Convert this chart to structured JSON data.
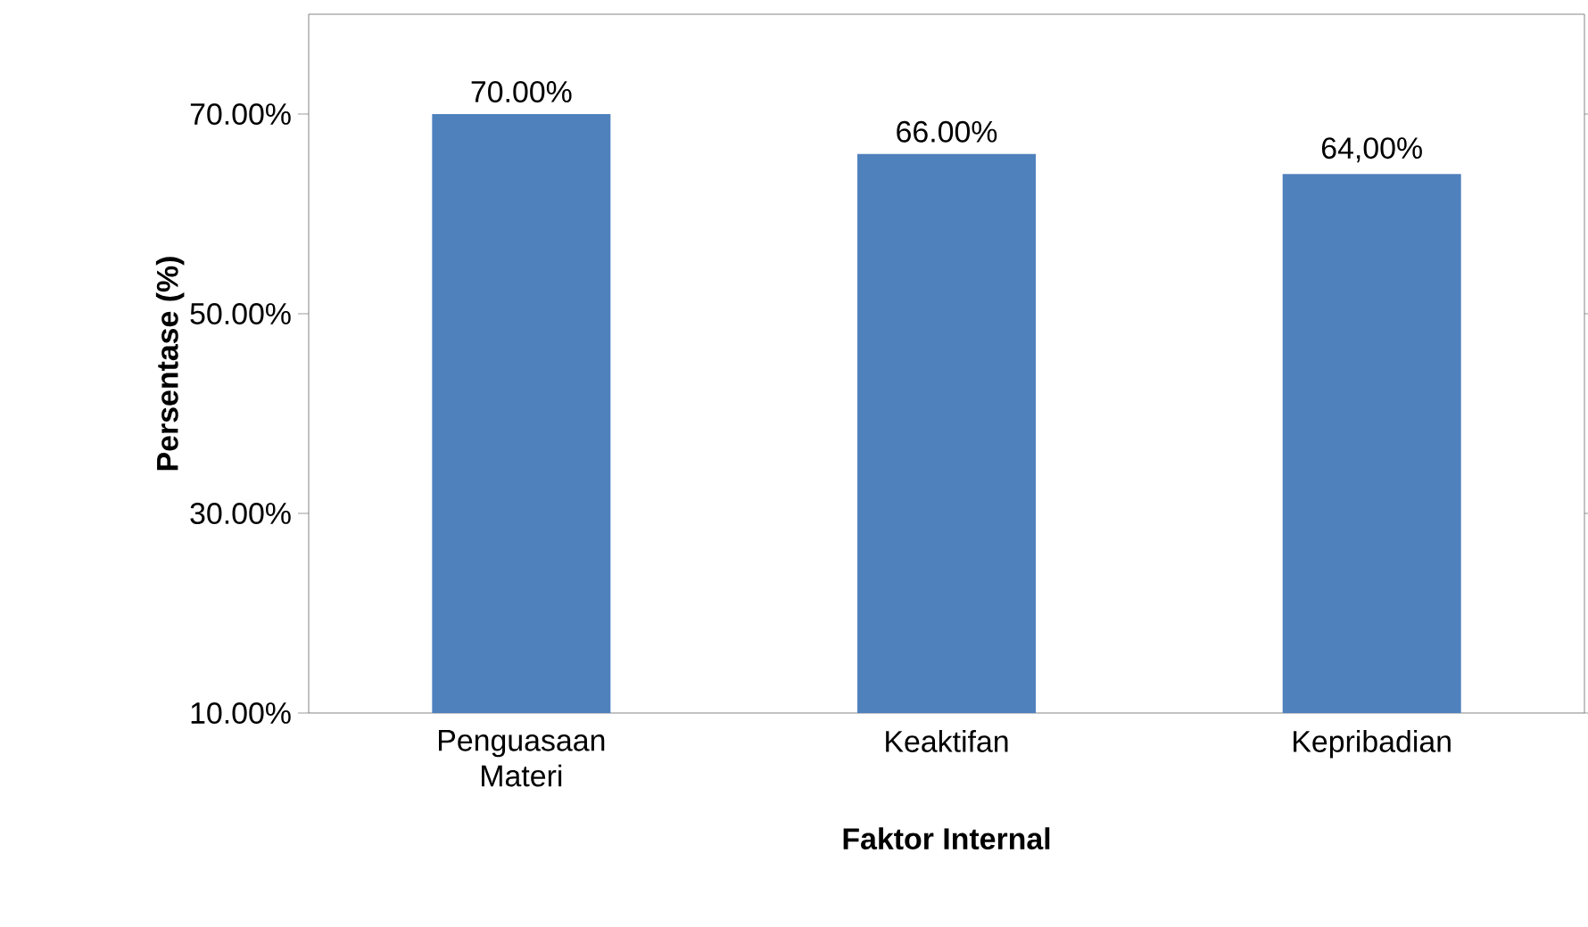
{
  "chart_data": {
    "type": "bar",
    "categories": [
      "Penguasaan Materi",
      "Keaktifan",
      "Kepribadian"
    ],
    "values": [
      70,
      66,
      64
    ],
    "value_labels": [
      "70.00%",
      "66.00%",
      "64,00%"
    ],
    "color": "#4f81bd",
    "xlabel": "Faktor Internal",
    "ylabel": "Persentase (%)",
    "ylim": [
      10,
      80
    ],
    "yticks": [
      {
        "value": 10,
        "label": "10.00%"
      },
      {
        "value": 30,
        "label": "30.00%"
      },
      {
        "value": 50,
        "label": "50.00%"
      },
      {
        "value": 70,
        "label": "70.00%"
      }
    ],
    "grid": false
  }
}
